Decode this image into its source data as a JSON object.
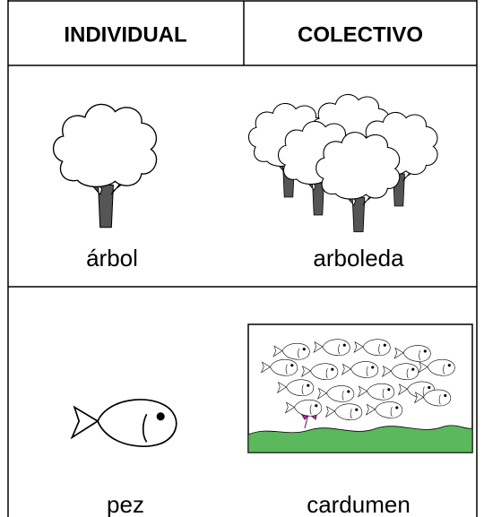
{
  "table": {
    "header": [
      "INDIVIDUAL",
      "COLECTIVO"
    ],
    "rows": [
      [
        "árbol",
        "arboleda"
      ],
      [
        "pez",
        "cardumen"
      ]
    ]
  }
}
